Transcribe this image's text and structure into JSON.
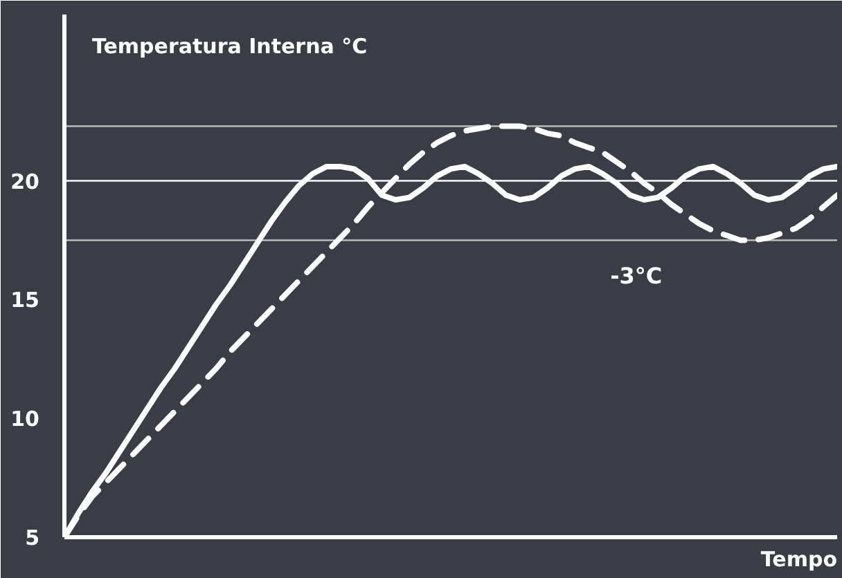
{
  "chart_data": {
    "type": "line",
    "ylabel": "Temperatura Interna °C",
    "xlabel": "Tempo",
    "categories": [
      null,
      null,
      null,
      null,
      null,
      null,
      null,
      null,
      null,
      null,
      null,
      null,
      null,
      null,
      null,
      null,
      null,
      null,
      null,
      null,
      null,
      null,
      null,
      null,
      null,
      null,
      null,
      null,
      null,
      null,
      null,
      null,
      null,
      null,
      null,
      null,
      null,
      null,
      null,
      null,
      null,
      null,
      null,
      null,
      null,
      null,
      null,
      null,
      null,
      null,
      null,
      null,
      null,
      null,
      null,
      null,
      null
    ],
    "ylim": [
      5,
      27
    ],
    "yticks": [
      5,
      10,
      15,
      20
    ],
    "tick_labels": "y",
    "grid": false,
    "series": [
      {
        "color": "#ffffff",
        "line_style": "solid",
        "values": [
          5,
          6.0,
          6.9,
          7.7,
          8.6,
          9.5,
          10.4,
          11.3,
          12.1,
          13.0,
          13.9,
          14.8,
          15.6,
          16.5,
          17.4,
          18.3,
          19.1,
          19.8,
          20.3,
          20.6,
          20.6,
          20.5,
          20.1,
          19.4,
          19.2,
          19.3,
          19.7,
          20.2,
          20.5,
          20.6,
          20.3,
          19.9,
          19.4,
          19.2,
          19.3,
          19.7,
          20.2,
          20.5,
          20.6,
          20.3,
          19.9,
          19.4,
          19.2,
          19.3,
          19.7,
          20.2,
          20.5,
          20.6,
          20.3,
          19.9,
          19.4,
          19.2,
          19.3,
          19.7,
          20.2,
          20.5,
          20.6
        ]
      },
      {
        "color": "#ffffff",
        "line_style": "dashed",
        "values": [
          5,
          5.9,
          6.7,
          7.3,
          7.9,
          8.5,
          9.1,
          9.7,
          10.3,
          10.9,
          11.5,
          12.1,
          12.8,
          13.4,
          14.0,
          14.6,
          15.2,
          15.8,
          16.4,
          17.0,
          17.6,
          18.2,
          18.9,
          19.5,
          20.1,
          20.7,
          21.2,
          21.6,
          21.9,
          22.1,
          22.2,
          22.3,
          22.3,
          22.3,
          22.2,
          22.0,
          21.9,
          21.6,
          21.4,
          21.2,
          20.8,
          20.4,
          19.9,
          19.5,
          19.0,
          18.6,
          18.2,
          17.9,
          17.7,
          17.5,
          17.5,
          17.6,
          17.8,
          18.0,
          18.4,
          18.9,
          19.4
        ]
      }
    ],
    "ref_lines": [
      {
        "axis": "y",
        "value": 20,
        "color": "#ffffff"
      },
      {
        "axis": "y",
        "value": 22.3,
        "color": "#bbbbbb"
      },
      {
        "axis": "y",
        "value": 17.5,
        "color": "#bbbbbb"
      }
    ],
    "annotations": [
      "-3°C"
    ]
  }
}
